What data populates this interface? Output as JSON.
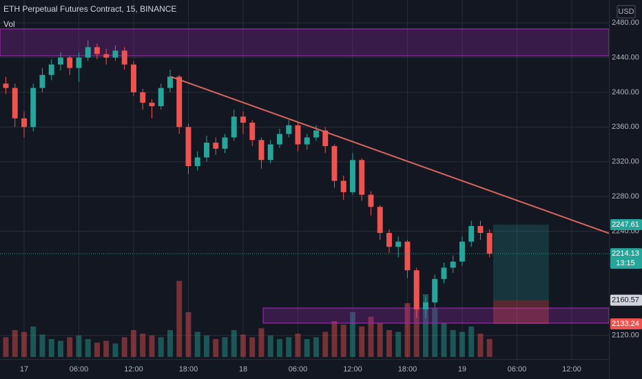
{
  "chart_data": {
    "type": "candlestick",
    "title": "ETH Perpetual Futures Contract, 15, BINANCE",
    "indicator": "Vol",
    "currency": "USD",
    "up_color": "#26a69a",
    "down_color": "#ef5350",
    "x": [
      -2,
      -1,
      0,
      1,
      2,
      3,
      4,
      5,
      6,
      7,
      8,
      9,
      10,
      11,
      12,
      13,
      14,
      15,
      16,
      17,
      18,
      19,
      20,
      21,
      22,
      23,
      24,
      25,
      26,
      27,
      28,
      29,
      30,
      31,
      32,
      33,
      34,
      35,
      36,
      37,
      38,
      39,
      40,
      41,
      42,
      43,
      44,
      45,
      46,
      47,
      48,
      49,
      50,
      51
    ],
    "open": [
      2410,
      2405,
      2370,
      2360,
      2405,
      2420,
      2432,
      2440,
      2428,
      2440,
      2452,
      2444,
      2440,
      2448,
      2432,
      2400,
      2388,
      2384,
      2405,
      2418,
      2360,
      2315,
      2325,
      2342,
      2335,
      2348,
      2372,
      2365,
      2345,
      2322,
      2340,
      2352,
      2362,
      2340,
      2348,
      2356,
      2338,
      2298,
      2285,
      2322,
      2282,
      2268,
      2238,
      2222,
      2228,
      2195,
      2150,
      2158,
      2185,
      2198,
      2205,
      2228,
      2246,
      2238
    ],
    "high": [
      2418,
      2410,
      2378,
      2410,
      2428,
      2438,
      2446,
      2442,
      2446,
      2460,
      2456,
      2450,
      2454,
      2452,
      2436,
      2404,
      2392,
      2410,
      2426,
      2420,
      2364,
      2332,
      2350,
      2348,
      2352,
      2380,
      2378,
      2368,
      2348,
      2345,
      2358,
      2368,
      2366,
      2352,
      2362,
      2360,
      2340,
      2304,
      2330,
      2324,
      2286,
      2270,
      2242,
      2234,
      2230,
      2198,
      2165,
      2190,
      2204,
      2212,
      2234,
      2252,
      2252,
      2242
    ],
    "low": [
      2398,
      2360,
      2348,
      2355,
      2400,
      2414,
      2425,
      2420,
      2412,
      2436,
      2438,
      2432,
      2436,
      2426,
      2396,
      2380,
      2370,
      2380,
      2400,
      2352,
      2306,
      2310,
      2320,
      2328,
      2330,
      2344,
      2352,
      2338,
      2312,
      2318,
      2336,
      2348,
      2332,
      2334,
      2344,
      2330,
      2290,
      2276,
      2282,
      2275,
      2258,
      2230,
      2215,
      2210,
      2186,
      2140,
      2140,
      2152,
      2180,
      2192,
      2200,
      2222,
      2230,
      2210
    ],
    "close": [
      2405,
      2370,
      2360,
      2405,
      2420,
      2432,
      2440,
      2428,
      2440,
      2452,
      2444,
      2440,
      2448,
      2432,
      2400,
      2388,
      2384,
      2405,
      2418,
      2360,
      2315,
      2325,
      2342,
      2335,
      2348,
      2372,
      2365,
      2345,
      2322,
      2340,
      2352,
      2362,
      2340,
      2348,
      2356,
      2338,
      2298,
      2285,
      2322,
      2282,
      2268,
      2238,
      2222,
      2228,
      2195,
      2150,
      2158,
      2185,
      2198,
      2205,
      2228,
      2246,
      2238,
      2214.13
    ],
    "volume": [
      22,
      30,
      28,
      34,
      25,
      20,
      18,
      22,
      24,
      20,
      16,
      18,
      15,
      22,
      30,
      26,
      24,
      22,
      30,
      85,
      50,
      28,
      24,
      20,
      22,
      30,
      25,
      22,
      32,
      24,
      20,
      22,
      26,
      20,
      22,
      28,
      40,
      36,
      50,
      34,
      45,
      38,
      30,
      28,
      60,
      90,
      70,
      55,
      38,
      30,
      28,
      34,
      26,
      20
    ],
    "vlim": [
      0,
      100
    ],
    "xlim": [
      -2.64,
      64.08
    ],
    "xticks": [
      {
        "value": 0,
        "label": "17"
      },
      {
        "value": 6,
        "label": "06:00"
      },
      {
        "value": 12,
        "label": "12:00"
      },
      {
        "value": 18,
        "label": "18:00"
      },
      {
        "value": 24,
        "label": "18"
      },
      {
        "value": 30,
        "label": "06:00"
      },
      {
        "value": 36,
        "label": "12:00"
      },
      {
        "value": 42,
        "label": "18:00"
      },
      {
        "value": 48,
        "label": "19"
      },
      {
        "value": 54,
        "label": "06:00"
      },
      {
        "value": 60,
        "label": "12:00"
      }
    ],
    "ylim": [
      2092.8,
      2506.3
    ],
    "yticks": [
      {
        "value": 2480,
        "label": "2480.00"
      },
      {
        "value": 2440,
        "label": "2440.00"
      },
      {
        "value": 2400,
        "label": "2400.00"
      },
      {
        "value": 2360,
        "label": "2360.00"
      },
      {
        "value": 2320,
        "label": "2320.00"
      },
      {
        "value": 2280,
        "label": "2280.00"
      },
      {
        "value": 2240,
        "label": "2240.00"
      },
      {
        "value": 2120,
        "label": "2120.00"
      }
    ],
    "grid": true,
    "zones": [
      {
        "low": 2442,
        "high": 2473,
        "x0": -2.64
      },
      {
        "low": 2134.1,
        "high": 2151.5,
        "x0": 26.2
      }
    ],
    "trendline": {
      "x": [
        16.08,
        64.08
      ],
      "y": [
        2418,
        2237.6
      ],
      "color": "#d9675f"
    },
    "position": {
      "x0": 51.4,
      "x1": 57.5,
      "target": 2247.61,
      "entry": 2160.57,
      "stop": 2133.24
    },
    "last_price": 2214.13,
    "countdown": "13:15"
  }
}
